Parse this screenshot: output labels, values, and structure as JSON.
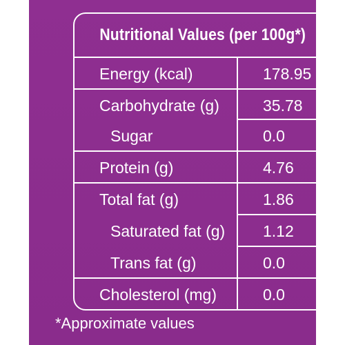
{
  "header": {
    "title": "Nutritional Values (per 100g*)"
  },
  "rows": [
    {
      "label": "Energy (kcal)",
      "value": "178.95"
    },
    {
      "label": "Carbohydrate (g)",
      "value": "35.78"
    },
    {
      "label": "Sugar",
      "value": "0.0"
    },
    {
      "label": "Protein (g)",
      "value": "4.76"
    },
    {
      "label": "Total fat (g)",
      "value": "1.86"
    },
    {
      "label": "Saturated fat (g)",
      "value": "1.12"
    },
    {
      "label": "Trans fat (g)",
      "value": "0.0"
    },
    {
      "label": "Cholesterol (mg)",
      "value": "0.0"
    }
  ],
  "footnote": "*Approximate values",
  "colors": {
    "background": "#8d2e8f",
    "text": "#ffffff",
    "page": "#ffffff"
  }
}
